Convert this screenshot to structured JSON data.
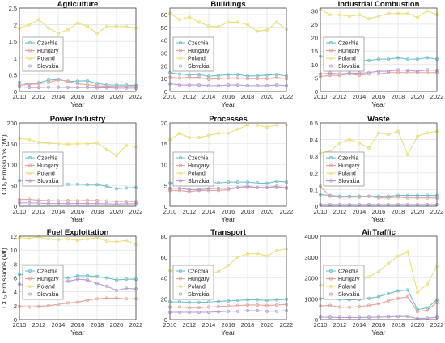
{
  "figure": {
    "legend_placement": "upper-left",
    "grid": true,
    "colors": {
      "Czechia": "#6fbfcc",
      "Hungary": "#e6a39a",
      "Poland": "#e9e07a",
      "Slovakia": "#b79ad6",
      "axis": "#444444",
      "grid": "#dcdcdc"
    }
  },
  "chart_data": [
    {
      "type": "line",
      "title": "Agriculture",
      "xlabel": "Year",
      "ylabel": "",
      "xlim": [
        2010,
        2022
      ],
      "ylim": [
        0,
        2.5
      ],
      "xticks": [
        "2010",
        "2012",
        "2014",
        "2016",
        "2018",
        "2020",
        "2022"
      ],
      "yticks": [
        "0",
        "0.5",
        "1",
        "1.5",
        "2",
        "2.5"
      ],
      "x": [
        2010,
        2011,
        2012,
        2013,
        2014,
        2015,
        2016,
        2017,
        2018,
        2019,
        2020,
        2021,
        2022
      ],
      "series": [
        {
          "name": "Czechia",
          "values": [
            0.27,
            0.22,
            0.26,
            0.34,
            0.36,
            0.3,
            0.31,
            0.32,
            0.24,
            0.2,
            0.19,
            0.19,
            0.18
          ]
        },
        {
          "name": "Hungary",
          "values": [
            0.19,
            0.21,
            0.23,
            0.27,
            0.35,
            0.31,
            0.23,
            0.2,
            0.17,
            0.16,
            0.15,
            0.15,
            0.15
          ]
        },
        {
          "name": "Poland",
          "values": [
            1.9,
            2.0,
            2.15,
            1.9,
            1.75,
            1.85,
            2.05,
            1.95,
            1.75,
            1.95,
            1.95,
            1.95,
            1.9
          ]
        },
        {
          "name": "Slovakia",
          "values": [
            0.14,
            0.12,
            0.12,
            0.13,
            0.13,
            0.12,
            0.12,
            0.12,
            0.11,
            0.11,
            0.1,
            0.1,
            0.1
          ]
        }
      ]
    },
    {
      "type": "line",
      "title": "Buildings",
      "xlabel": "Year",
      "ylabel": "",
      "xlim": [
        2010,
        2022
      ],
      "ylim": [
        0,
        65
      ],
      "xticks": [
        "2010",
        "2012",
        "2014",
        "2016",
        "2018",
        "2020",
        "2022"
      ],
      "yticks": [
        "0",
        "10",
        "20",
        "30",
        "40",
        "50",
        "60"
      ],
      "x": [
        2010,
        2011,
        2012,
        2013,
        2014,
        2015,
        2016,
        2017,
        2018,
        2019,
        2020,
        2021,
        2022
      ],
      "series": [
        {
          "name": "Czechia",
          "values": [
            14.5,
            13.5,
            13.0,
            13.2,
            11.8,
            12.5,
            13.0,
            13.2,
            12.0,
            12.2,
            12.8,
            13.2,
            12.0
          ]
        },
        {
          "name": "Hungary",
          "values": [
            11.0,
            10.5,
            11.0,
            11.0,
            9.5,
            10.0,
            10.5,
            10.5,
            10.0,
            10.0,
            10.0,
            11.0,
            10.0
          ]
        },
        {
          "name": "Poland",
          "values": [
            61.0,
            56.0,
            58.0,
            54.0,
            51.0,
            50.5,
            54.0,
            54.0,
            52.0,
            47.0,
            48.0,
            54.0,
            48.5
          ]
        },
        {
          "name": "Slovakia",
          "values": [
            6.0,
            5.0,
            5.0,
            5.0,
            4.5,
            4.5,
            5.0,
            5.0,
            4.5,
            4.5,
            4.5,
            5.0,
            4.5
          ]
        }
      ]
    },
    {
      "type": "line",
      "title": "Industrial Combustion",
      "xlabel": "Year",
      "ylabel": "",
      "xlim": [
        2010,
        2022
      ],
      "ylim": [
        0,
        31
      ],
      "xticks": [
        "2010",
        "2012",
        "2014",
        "2016",
        "2018",
        "2020",
        "2022"
      ],
      "yticks": [
        "0",
        "5",
        "10",
        "15",
        "20",
        "25",
        "30"
      ],
      "x": [
        2010,
        2011,
        2012,
        2013,
        2014,
        2015,
        2016,
        2017,
        2018,
        2019,
        2020,
        2021,
        2022
      ],
      "series": [
        {
          "name": "Czechia",
          "values": [
            13.0,
            12.5,
            12.5,
            12.5,
            11.5,
            11.5,
            12.0,
            12.0,
            12.5,
            12.0,
            12.0,
            12.5,
            12.0
          ]
        },
        {
          "name": "Hungary",
          "values": [
            5.5,
            6.0,
            6.0,
            6.5,
            6.0,
            6.5,
            6.5,
            7.0,
            7.0,
            7.0,
            7.0,
            7.0,
            7.0
          ]
        },
        {
          "name": "Poland",
          "values": [
            30.5,
            28.5,
            28.5,
            28.0,
            28.5,
            27.0,
            28.0,
            29.0,
            29.0,
            29.0,
            27.5,
            30.0,
            28.5
          ]
        },
        {
          "name": "Slovakia",
          "values": [
            6.5,
            6.8,
            6.5,
            6.8,
            6.8,
            7.0,
            7.5,
            7.5,
            8.0,
            7.8,
            7.5,
            8.0,
            7.8
          ]
        }
      ]
    },
    {
      "type": "line",
      "title": "Power Industry",
      "xlabel": "Year",
      "ylabel": "CO₂ Emissions (Mt)",
      "xlim": [
        2010,
        2022
      ],
      "ylim": [
        0,
        200
      ],
      "xticks": [
        "2010",
        "2012",
        "2014",
        "2016",
        "2018",
        "2020",
        "2022"
      ],
      "yticks": [
        "0",
        "50",
        "100",
        "150",
        "200"
      ],
      "x": [
        2010,
        2011,
        2012,
        2013,
        2014,
        2015,
        2016,
        2017,
        2018,
        2019,
        2020,
        2021,
        2022
      ],
      "series": [
        {
          "name": "Czechia",
          "values": [
            62.0,
            61.0,
            58.0,
            55.0,
            54.0,
            53.0,
            53.0,
            52.0,
            52.0,
            48.0,
            42.0,
            44.0,
            45.0
          ]
        },
        {
          "name": "Hungary",
          "values": [
            16.0,
            16.5,
            14.5,
            13.5,
            13.0,
            13.5,
            13.0,
            14.0,
            13.5,
            12.5,
            11.5,
            11.5,
            11.0
          ]
        },
        {
          "name": "Poland",
          "values": [
            163.0,
            160.0,
            153.0,
            152.0,
            150.0,
            149.0,
            150.0,
            150.0,
            152.0,
            136.0,
            122.0,
            146.0,
            143.0
          ]
        },
        {
          "name": "Slovakia",
          "values": [
            8.0,
            8.0,
            7.5,
            6.5,
            6.5,
            6.5,
            6.5,
            6.5,
            6.5,
            6.0,
            5.5,
            6.0,
            6.0
          ]
        }
      ]
    },
    {
      "type": "line",
      "title": "Processes",
      "xlabel": "Year",
      "ylabel": "",
      "xlim": [
        2010,
        2022
      ],
      "ylim": [
        0,
        20
      ],
      "xticks": [
        "2010",
        "2012",
        "2014",
        "2016",
        "2018",
        "2020",
        "2022"
      ],
      "yticks": [
        "0",
        "5",
        "10",
        "15",
        "20"
      ],
      "x": [
        2010,
        2011,
        2012,
        2013,
        2014,
        2015,
        2016,
        2017,
        2018,
        2019,
        2020,
        2021,
        2022
      ],
      "series": [
        {
          "name": "Czechia",
          "values": [
            5.5,
            5.8,
            5.5,
            5.3,
            5.8,
            5.6,
            5.8,
            5.8,
            5.8,
            5.6,
            5.5,
            6.0,
            5.8
          ]
        },
        {
          "name": "Hungary",
          "values": [
            3.8,
            3.8,
            3.5,
            3.8,
            3.8,
            3.8,
            4.0,
            4.5,
            4.5,
            4.5,
            4.5,
            4.5,
            4.5
          ]
        },
        {
          "name": "Poland",
          "values": [
            16.0,
            17.5,
            16.5,
            16.5,
            17.0,
            17.5,
            17.5,
            18.5,
            19.5,
            19.5,
            19.0,
            19.5,
            19.5
          ]
        },
        {
          "name": "Slovakia",
          "values": [
            4.3,
            4.3,
            4.0,
            4.0,
            4.2,
            4.3,
            4.3,
            4.5,
            4.8,
            4.5,
            4.5,
            4.8,
            4.3
          ]
        }
      ]
    },
    {
      "type": "line",
      "title": "Waste",
      "xlabel": "Year",
      "ylabel": "",
      "xlim": [
        2010,
        2022
      ],
      "ylim": [
        0,
        0.5
      ],
      "xticks": [
        "2010",
        "2012",
        "2014",
        "2016",
        "2018",
        "2020",
        "2022"
      ],
      "yticks": [
        "0",
        "0.1",
        "0.2",
        "0.3",
        "0.4",
        "0.5"
      ],
      "x": [
        2010,
        2011,
        2012,
        2013,
        2014,
        2015,
        2016,
        2017,
        2018,
        2019,
        2020,
        2021,
        2022
      ],
      "series": [
        {
          "name": "Czechia",
          "values": [
            0.07,
            0.065,
            0.06,
            0.06,
            0.06,
            0.06,
            0.06,
            0.06,
            0.065,
            0.065,
            0.065,
            0.065,
            0.065
          ]
        },
        {
          "name": "Hungary",
          "values": [
            0.12,
            0.06,
            0.055,
            0.055,
            0.055,
            0.06,
            0.05,
            0.05,
            0.055,
            0.05,
            0.05,
            0.05,
            0.05
          ]
        },
        {
          "name": "Poland",
          "values": [
            0.32,
            0.33,
            0.38,
            0.4,
            0.38,
            0.35,
            0.44,
            0.43,
            0.45,
            0.31,
            0.42,
            0.44,
            0.45
          ]
        },
        {
          "name": "Slovakia",
          "values": [
            0.01,
            0.01,
            0.01,
            0.01,
            0.01,
            0.01,
            0.01,
            0.01,
            0.01,
            0.01,
            0.01,
            0.01,
            0.01
          ]
        }
      ]
    },
    {
      "type": "line",
      "title": "Fuel Exploitation",
      "xlabel": "Year",
      "ylabel": "CO₂ Emissions (Mt)",
      "xlim": [
        2010,
        2022
      ],
      "ylim": [
        0,
        12
      ],
      "xticks": [
        "2010",
        "2012",
        "2014",
        "2016",
        "2018",
        "2020",
        "2022"
      ],
      "yticks": [
        "0",
        "2",
        "4",
        "6",
        "8",
        "10",
        "12"
      ],
      "x": [
        2010,
        2011,
        2012,
        2013,
        2014,
        2015,
        2016,
        2017,
        2018,
        2019,
        2020,
        2021,
        2022
      ],
      "series": [
        {
          "name": "Czechia",
          "values": [
            6.5,
            6.3,
            6.5,
            6.3,
            6.2,
            6.0,
            6.3,
            6.3,
            6.2,
            6.0,
            5.7,
            5.8,
            5.8
          ]
        },
        {
          "name": "Hungary",
          "values": [
            1.9,
            1.8,
            1.9,
            2.0,
            2.2,
            2.4,
            2.5,
            2.8,
            3.0,
            3.1,
            3.1,
            3.0,
            3.0
          ]
        },
        {
          "name": "Poland",
          "values": [
            11.8,
            11.7,
            11.9,
            11.6,
            11.5,
            11.6,
            11.4,
            11.6,
            11.8,
            11.3,
            11.2,
            11.4,
            10.8
          ]
        },
        {
          "name": "Slovakia",
          "values": [
            5.1,
            4.8,
            5.2,
            5.0,
            5.3,
            5.5,
            5.8,
            5.7,
            5.2,
            4.8,
            4.2,
            4.5,
            4.4
          ]
        }
      ]
    },
    {
      "type": "line",
      "title": "Transport",
      "xlabel": "Year",
      "ylabel": "",
      "xlim": [
        2010,
        2022
      ],
      "ylim": [
        0,
        80
      ],
      "xticks": [
        "2010",
        "2012",
        "2014",
        "2016",
        "2018",
        "2020",
        "2022"
      ],
      "yticks": [
        "0",
        "20",
        "40",
        "60",
        "80"
      ],
      "x": [
        2010,
        2011,
        2012,
        2013,
        2014,
        2015,
        2016,
        2017,
        2018,
        2019,
        2020,
        2021,
        2022
      ],
      "series": [
        {
          "name": "Czechia",
          "values": [
            17.0,
            17.0,
            16.5,
            16.5,
            17.0,
            17.5,
            18.0,
            18.5,
            19.0,
            19.0,
            18.5,
            19.0,
            19.5
          ]
        },
        {
          "name": "Hungary",
          "values": [
            12.0,
            12.0,
            11.5,
            11.5,
            12.0,
            12.5,
            13.0,
            13.5,
            14.0,
            14.0,
            13.5,
            14.0,
            14.5
          ]
        },
        {
          "name": "Poland",
          "values": [
            47.0,
            46.0,
            44.0,
            43.0,
            43.5,
            46.0,
            52.0,
            60.0,
            63.0,
            63.5,
            61.0,
            66.0,
            68.0
          ]
        },
        {
          "name": "Slovakia",
          "values": [
            7.0,
            7.0,
            7.0,
            7.0,
            7.0,
            7.5,
            8.0,
            8.0,
            8.5,
            8.5,
            8.0,
            8.0,
            8.5
          ]
        }
      ]
    },
    {
      "type": "line",
      "title": "AirTraffic",
      "xlabel": "Year",
      "ylabel": "",
      "xlim": [
        2010,
        2022
      ],
      "ylim": [
        0,
        4000
      ],
      "xticks": [
        "2010",
        "2012",
        "2014",
        "2016",
        "2018",
        "2020",
        "2022"
      ],
      "yticks": [
        "0",
        "1000",
        "2000",
        "3000",
        "4000"
      ],
      "x": [
        2010,
        2011,
        2012,
        2013,
        2014,
        2015,
        2016,
        2017,
        2018,
        2019,
        2020,
        2021,
        2022
      ],
      "series": [
        {
          "name": "Czechia",
          "values": [
            1000,
            1080,
            980,
            950,
            970,
            1020,
            1100,
            1250,
            1380,
            1420,
            480,
            560,
            950
          ]
        },
        {
          "name": "Hungary",
          "values": [
            650,
            680,
            600,
            590,
            620,
            680,
            760,
            900,
            1020,
            1100,
            380,
            450,
            820
          ]
        },
        {
          "name": "Poland",
          "values": [
            1650,
            1700,
            1750,
            1850,
            1900,
            2050,
            2300,
            2700,
            3050,
            3250,
            1300,
            1700,
            2550
          ]
        },
        {
          "name": "Slovakia",
          "values": [
            120,
            110,
            100,
            100,
            100,
            110,
            120,
            130,
            150,
            150,
            50,
            70,
            110
          ]
        }
      ]
    }
  ]
}
